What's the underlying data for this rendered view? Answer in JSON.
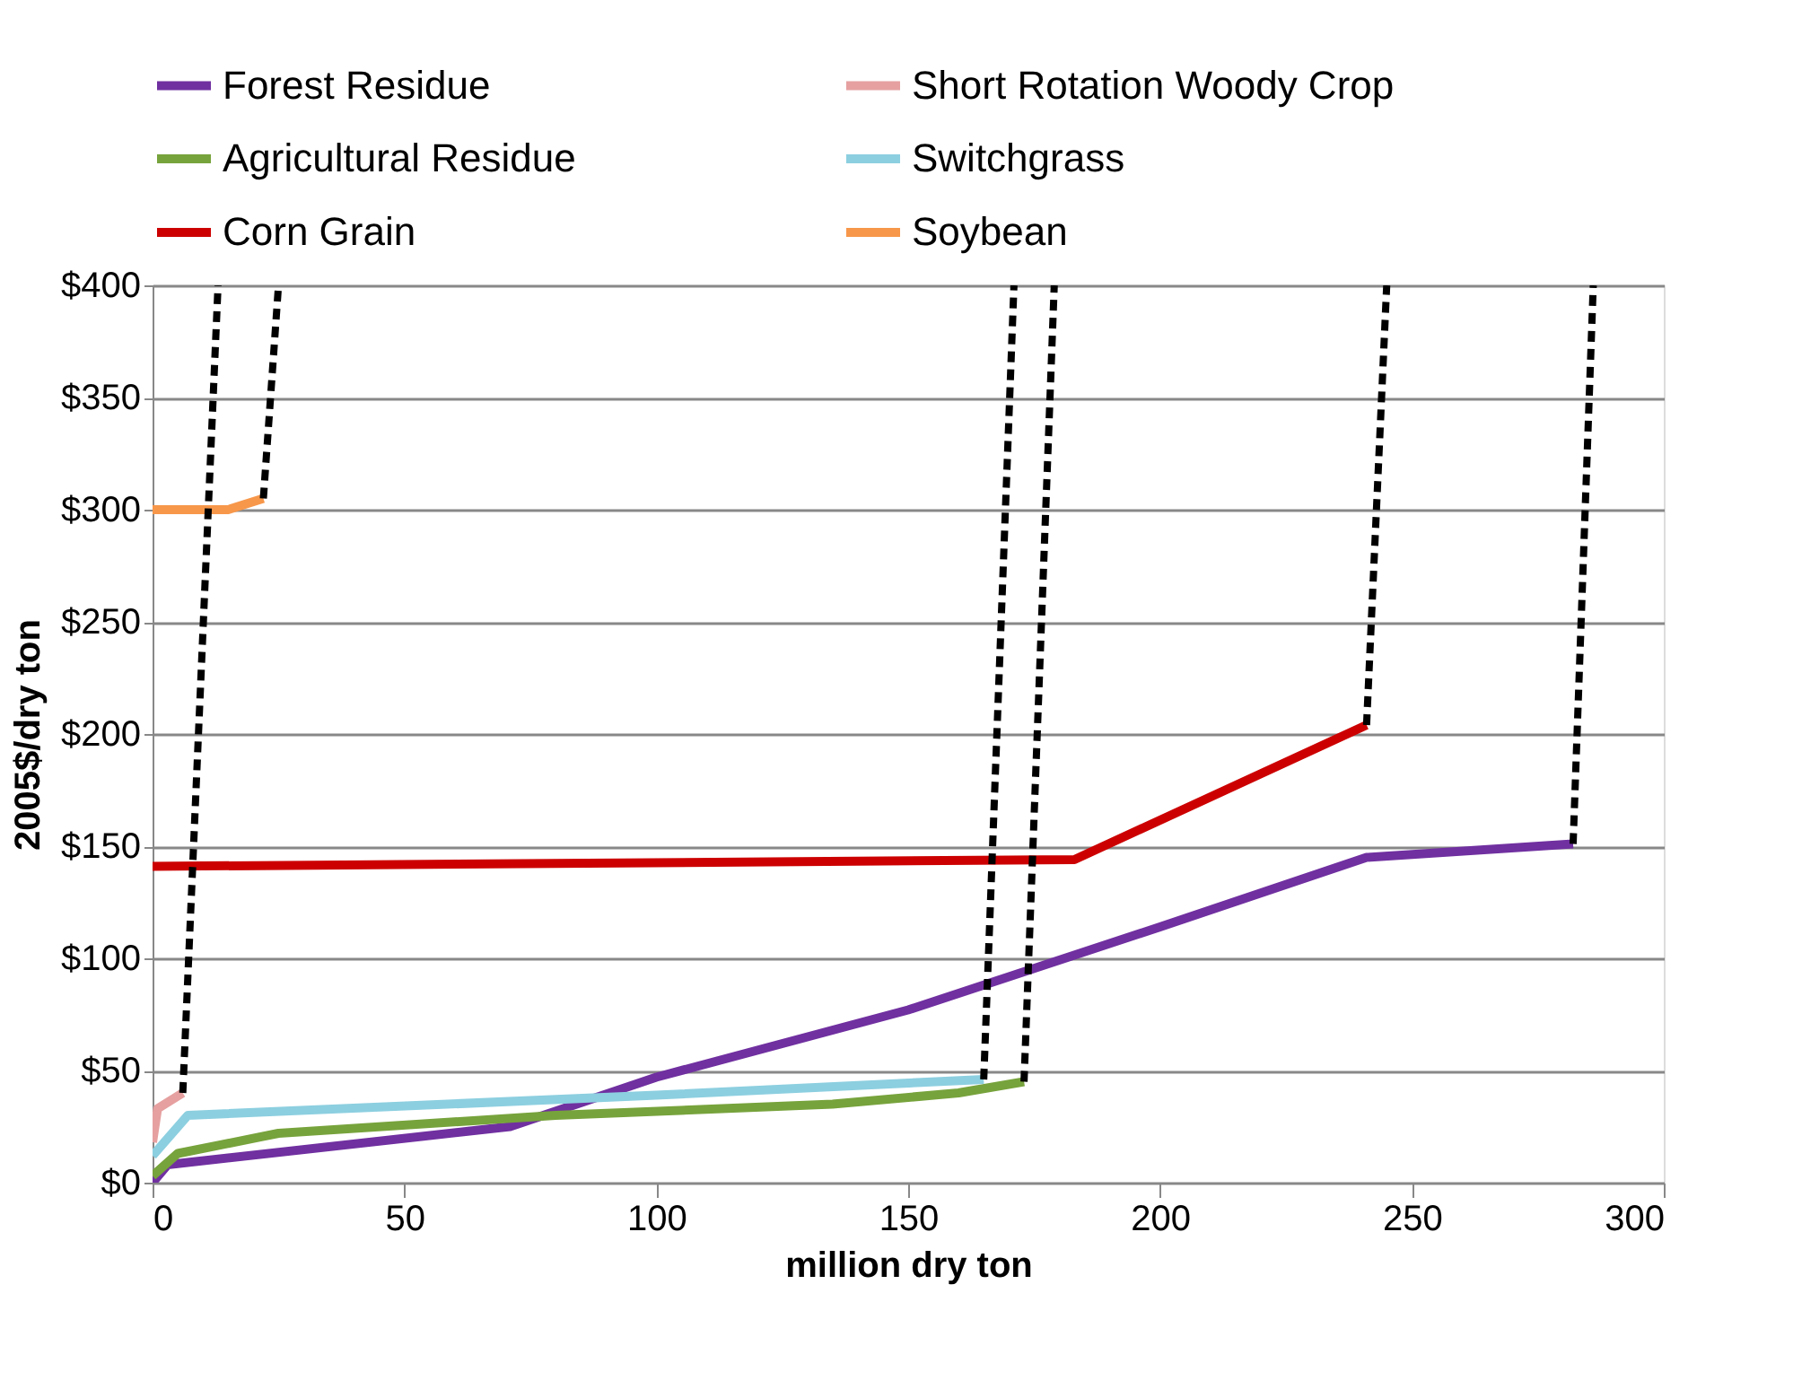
{
  "chart_data": {
    "type": "line",
    "xlabel": "million dry ton",
    "ylabel": "2005$/dry ton",
    "xlim": [
      0,
      300
    ],
    "xticks": [
      0,
      50,
      100,
      150,
      200,
      250,
      300
    ],
    "ylim": [
      0,
      400
    ],
    "yticks": [
      {
        "value": 0,
        "label": "$0"
      },
      {
        "value": 50,
        "label": "$50"
      },
      {
        "value": 100,
        "label": "$100"
      },
      {
        "value": 150,
        "label": "$150"
      },
      {
        "value": 200,
        "label": "$200"
      },
      {
        "value": 250,
        "label": "$250"
      },
      {
        "value": 300,
        "label": "$300"
      },
      {
        "value": 350,
        "label": "$350"
      },
      {
        "value": 400,
        "label": "$400"
      }
    ],
    "grid": "y",
    "legend": "top",
    "line_style": "solid",
    "marker": "none",
    "series": [
      {
        "name": "Forest Residue",
        "color": "#7030a0",
        "x": [
          0,
          3,
          71,
          100,
          150,
          200,
          241,
          282
        ],
        "values": [
          0,
          8,
          25,
          47,
          77,
          114,
          145,
          151
        ]
      },
      {
        "name": "Short Rotation Woody Crop",
        "color": "#e6a0a0",
        "x": [
          0,
          1,
          6
        ],
        "values": [
          18,
          33,
          40
        ]
      },
      {
        "name": "Agricultural Residue",
        "color": "#77a33c",
        "x": [
          0,
          5,
          25,
          80,
          135,
          160,
          173
        ],
        "values": [
          3,
          13,
          22,
          30,
          35,
          40,
          45
        ]
      },
      {
        "name": "Switchgrass",
        "color": "#8ccfe0",
        "x": [
          0,
          7,
          100,
          165
        ],
        "values": [
          12,
          30,
          39,
          46
        ]
      },
      {
        "name": "Corn Grain",
        "color": "#cc0000",
        "x": [
          0,
          183,
          241
        ],
        "values": [
          141,
          144,
          204
        ]
      },
      {
        "name": "Soybean",
        "color": "#f7974a",
        "x": [
          0,
          15,
          22
        ],
        "values": [
          300,
          300,
          305
        ]
      },
      {
        "color": "#000000",
        "line_style": "dashed",
        "x": [
          282,
          286
        ],
        "values": [
          151,
          400
        ]
      },
      {
        "color": "#000000",
        "line_style": "dashed",
        "x": [
          6,
          13
        ],
        "values": [
          40,
          400
        ]
      },
      {
        "color": "#000000",
        "line_style": "dashed",
        "x": [
          173,
          179
        ],
        "values": [
          45,
          400
        ]
      },
      {
        "color": "#000000",
        "line_style": "dashed",
        "x": [
          165,
          171
        ],
        "values": [
          46,
          400
        ]
      },
      {
        "color": "#000000",
        "line_style": "dashed",
        "x": [
          241,
          245
        ],
        "values": [
          204,
          400
        ]
      },
      {
        "color": "#000000",
        "line_style": "dashed",
        "x": [
          22,
          25
        ],
        "values": [
          305,
          400
        ]
      }
    ]
  }
}
